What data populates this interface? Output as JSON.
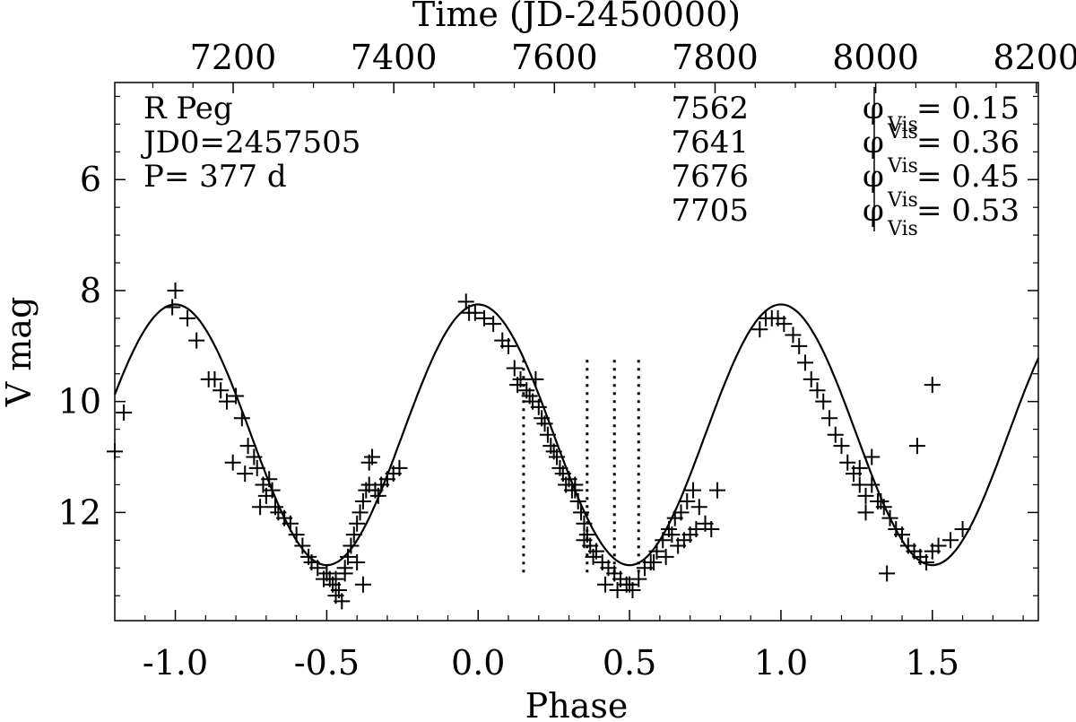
{
  "chart_data": {
    "type": "scatter",
    "title": "",
    "xlabel": "Phase",
    "ylabel": "V mag",
    "top_xlabel": "Time (JD-2450000)",
    "xlim": [
      -1.2,
      1.85
    ],
    "ylim": [
      13.95,
      4.25
    ],
    "top_xlim": [
      7052.6,
      8202.5
    ],
    "x_ticks": [
      "-1.0",
      "-0.5",
      "0.0",
      "0.5",
      "1.0",
      "1.5"
    ],
    "x_tick_values": [
      -1.0,
      -0.5,
      0.0,
      0.5,
      1.0,
      1.5
    ],
    "y_ticks": [
      "6",
      "8",
      "10",
      "12"
    ],
    "y_tick_values": [
      6,
      8,
      10,
      12
    ],
    "top_ticks": [
      "7200",
      "7400",
      "7600",
      "7800",
      "8000",
      "8200"
    ],
    "top_tick_values": [
      7200,
      7400,
      7600,
      7800,
      8000,
      8200
    ],
    "star_info": [
      "R Peg",
      "JD0=2457505",
      "P= 377 d"
    ],
    "obs_dates": [
      {
        "jd": "7562",
        "phase_label": "φ",
        "sub": "Vis",
        "value": "= 0.15"
      },
      {
        "jd": "7641",
        "phase_label": "φ",
        "sub": "Vis",
        "value": "= 0.36"
      },
      {
        "jd": "7676",
        "phase_label": "φ",
        "sub": "Vis",
        "value": "= 0.45"
      },
      {
        "jd": "7705",
        "phase_label": "φ",
        "sub": "Vis",
        "value": "= 0.53"
      }
    ],
    "obs_phases": [
      0.15,
      0.36,
      0.45,
      0.53
    ],
    "obs_line_range": [
      9.25,
      13.15
    ],
    "fit_curve": {
      "mean": 10.6,
      "amplitude": 2.35,
      "max_phase": 0.0,
      "phase_min": -1.2,
      "phase_max": 1.85
    },
    "series": [
      {
        "name": "observations",
        "marker": "+",
        "points": [
          [
            -1.2,
            10.9
          ],
          [
            -1.17,
            10.2
          ],
          [
            -1.0,
            8.0
          ],
          [
            -1.01,
            8.3
          ],
          [
            -0.96,
            8.5
          ],
          [
            -0.93,
            8.9
          ],
          [
            -0.89,
            9.6
          ],
          [
            -0.87,
            9.6
          ],
          [
            -0.85,
            9.8
          ],
          [
            -0.83,
            10.0
          ],
          [
            -0.8,
            9.9
          ],
          [
            -0.78,
            10.3
          ],
          [
            -0.76,
            10.8
          ],
          [
            -0.74,
            11.0
          ],
          [
            -0.81,
            11.1
          ],
          [
            -0.77,
            11.3
          ],
          [
            -0.73,
            11.2
          ],
          [
            -0.71,
            11.5
          ],
          [
            -0.69,
            11.4
          ],
          [
            -0.7,
            11.7
          ],
          [
            -0.68,
            11.6
          ],
          [
            -0.67,
            11.9
          ],
          [
            -0.72,
            11.9
          ],
          [
            -0.66,
            12.0
          ],
          [
            -0.64,
            12.1
          ],
          [
            -0.62,
            12.2
          ],
          [
            -0.6,
            12.4
          ],
          [
            -0.58,
            12.6
          ],
          [
            -0.56,
            12.8
          ],
          [
            -0.55,
            12.9
          ],
          [
            -0.53,
            13.0
          ],
          [
            -0.51,
            13.2
          ],
          [
            -0.5,
            13.1
          ],
          [
            -0.49,
            13.2
          ],
          [
            -0.48,
            13.3
          ],
          [
            -0.47,
            13.5
          ],
          [
            -0.46,
            13.4
          ],
          [
            -0.45,
            13.6
          ],
          [
            -0.47,
            13.2
          ],
          [
            -0.44,
            13.0
          ],
          [
            -0.43,
            12.8
          ],
          [
            -0.42,
            12.6
          ],
          [
            -0.41,
            12.4
          ],
          [
            -0.4,
            12.2
          ],
          [
            -0.39,
            12.0
          ],
          [
            -0.38,
            11.8
          ],
          [
            -0.37,
            11.6
          ],
          [
            -0.36,
            11.5
          ],
          [
            -0.34,
            11.6
          ],
          [
            -0.32,
            11.5
          ],
          [
            -0.3,
            11.4
          ],
          [
            -0.28,
            11.3
          ],
          [
            -0.26,
            11.2
          ],
          [
            -0.33,
            11.7
          ],
          [
            -0.4,
            12.9
          ],
          [
            -0.38,
            13.3
          ],
          [
            -0.36,
            11.1
          ],
          [
            -0.35,
            11.0
          ],
          [
            -0.44,
            13.1
          ],
          [
            -0.04,
            8.2
          ],
          [
            -0.03,
            8.4
          ],
          [
            -0.01,
            8.4
          ],
          [
            0.02,
            8.5
          ],
          [
            0.05,
            8.6
          ],
          [
            0.08,
            8.9
          ],
          [
            0.1,
            9.0
          ],
          [
            0.12,
            9.4
          ],
          [
            0.13,
            9.7
          ],
          [
            0.14,
            9.6
          ],
          [
            0.16,
            9.8
          ],
          [
            0.17,
            9.9
          ],
          [
            0.18,
            10.0
          ],
          [
            0.19,
            9.6
          ],
          [
            0.2,
            10.1
          ],
          [
            0.21,
            10.3
          ],
          [
            0.22,
            10.4
          ],
          [
            0.23,
            10.6
          ],
          [
            0.24,
            10.8
          ],
          [
            0.25,
            10.9
          ],
          [
            0.26,
            11.0
          ],
          [
            0.27,
            11.2
          ],
          [
            0.28,
            11.3
          ],
          [
            0.29,
            11.5
          ],
          [
            0.3,
            11.4
          ],
          [
            0.31,
            11.6
          ],
          [
            0.32,
            11.5
          ],
          [
            0.33,
            11.8
          ],
          [
            0.34,
            12.0
          ],
          [
            0.35,
            12.2
          ],
          [
            0.36,
            12.4
          ],
          [
            0.37,
            12.6
          ],
          [
            0.38,
            12.8
          ],
          [
            0.39,
            12.7
          ],
          [
            0.41,
            12.9
          ],
          [
            0.43,
            13.0
          ],
          [
            0.45,
            13.1
          ],
          [
            0.47,
            13.2
          ],
          [
            0.49,
            13.3
          ],
          [
            0.51,
            13.4
          ],
          [
            0.53,
            13.2
          ],
          [
            0.55,
            13.0
          ],
          [
            0.57,
            12.9
          ],
          [
            0.59,
            12.7
          ],
          [
            0.61,
            12.5
          ],
          [
            0.63,
            12.3
          ],
          [
            0.65,
            12.1
          ],
          [
            0.67,
            12.0
          ],
          [
            0.69,
            11.8
          ],
          [
            0.71,
            11.6
          ],
          [
            0.73,
            11.9
          ],
          [
            0.75,
            12.2
          ],
          [
            0.77,
            12.3
          ],
          [
            0.79,
            11.6
          ],
          [
            0.62,
            12.8
          ],
          [
            0.64,
            12.4
          ],
          [
            0.66,
            12.6
          ],
          [
            0.68,
            12.5
          ],
          [
            0.7,
            12.4
          ],
          [
            0.72,
            12.3
          ],
          [
            0.32,
            11.6
          ],
          [
            0.35,
            12.5
          ],
          [
            0.42,
            13.3
          ],
          [
            0.46,
            13.4
          ],
          [
            0.5,
            13.3
          ],
          [
            0.58,
            12.9
          ],
          [
            0.93,
            8.7
          ],
          [
            0.95,
            8.5
          ],
          [
            0.97,
            8.5
          ],
          [
            0.99,
            8.5
          ],
          [
            1.01,
            8.6
          ],
          [
            1.04,
            8.8
          ],
          [
            1.06,
            9.0
          ],
          [
            1.08,
            9.3
          ],
          [
            1.1,
            9.6
          ],
          [
            1.12,
            9.8
          ],
          [
            1.14,
            10.0
          ],
          [
            1.16,
            10.3
          ],
          [
            1.18,
            10.6
          ],
          [
            1.2,
            10.8
          ],
          [
            1.22,
            11.1
          ],
          [
            1.24,
            11.3
          ],
          [
            1.26,
            11.5
          ],
          [
            1.28,
            11.7
          ],
          [
            1.3,
            11.5
          ],
          [
            1.32,
            11.8
          ],
          [
            1.34,
            11.9
          ],
          [
            1.36,
            12.1
          ],
          [
            1.38,
            12.3
          ],
          [
            1.4,
            12.4
          ],
          [
            1.42,
            12.6
          ],
          [
            1.44,
            12.7
          ],
          [
            1.46,
            12.8
          ],
          [
            1.48,
            12.9
          ],
          [
            1.5,
            12.7
          ],
          [
            1.52,
            12.6
          ],
          [
            1.56,
            12.5
          ],
          [
            1.6,
            12.3
          ],
          [
            1.45,
            10.8
          ],
          [
            1.5,
            9.7
          ],
          [
            1.35,
            13.1
          ],
          [
            1.3,
            11.0
          ],
          [
            1.28,
            12.0
          ],
          [
            1.26,
            11.2
          ],
          [
            1.33,
            11.8
          ]
        ]
      }
    ]
  }
}
